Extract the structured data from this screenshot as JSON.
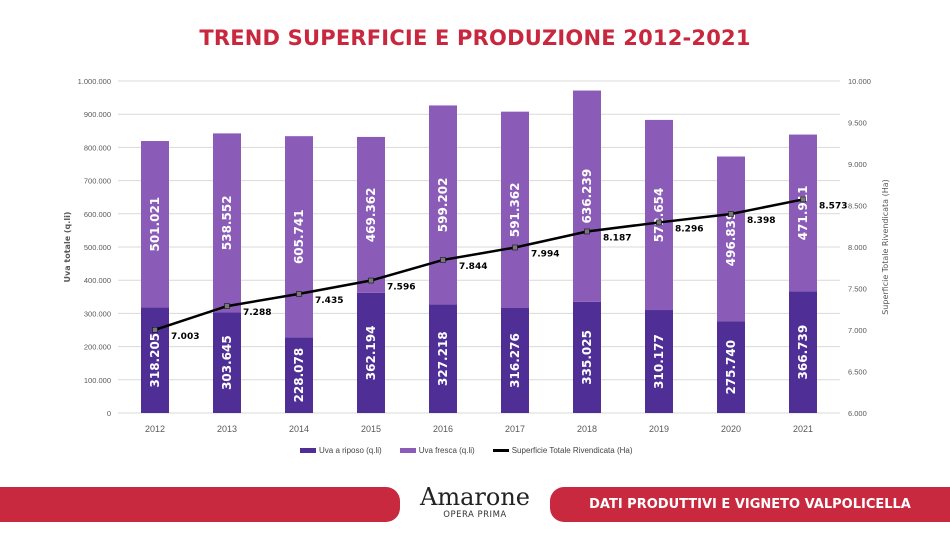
{
  "chart_data": {
    "type": "bar",
    "stacked": true,
    "title": "TREND SUPERFICIE E PRODUZIONE 2012-2021",
    "categories": [
      "2012",
      "2013",
      "2014",
      "2015",
      "2016",
      "2017",
      "2018",
      "2019",
      "2020",
      "2021"
    ],
    "ylabel": "Uva totale (q.li)",
    "ylim": [
      0,
      1000000
    ],
    "yticks": [
      "0",
      "100.000",
      "200.000",
      "300.000",
      "400.000",
      "500.000",
      "600.000",
      "700.000",
      "800.000",
      "900.000",
      "1.000.000"
    ],
    "y2label": "Superficie Totale Rivendicata (Ha)",
    "y2lim": [
      6000,
      10000
    ],
    "y2ticks": [
      "6.000",
      "6.500",
      "7.000",
      "7.500",
      "8.000",
      "8.500",
      "9.000",
      "9.500",
      "10.000"
    ],
    "grid": true,
    "legend_placement": "bottom",
    "series": [
      {
        "name": "Uva a riposo (q.li)",
        "type": "bar",
        "axis": "left",
        "color": "#4f2f96",
        "values": [
          318205,
          303645,
          228078,
          362194,
          327218,
          316276,
          335025,
          310177,
          275740,
          366739
        ],
        "labels": [
          "318.205",
          "303.645",
          "228.078",
          "362.194",
          "327.218",
          "316.276",
          "335.025",
          "310.177",
          "275.740",
          "366.739"
        ]
      },
      {
        "name": "Uva fresca (q.li)",
        "type": "bar",
        "axis": "left",
        "color": "#8a5cb8",
        "values": [
          501021,
          538552,
          605741,
          469362,
          599202,
          591362,
          636239,
          572654,
          496839,
          471911
        ],
        "labels": [
          "501.021",
          "538.552",
          "605.741",
          "469.362",
          "599.202",
          "591.362",
          "636.239",
          "572.654",
          "496.839",
          "471.911"
        ]
      },
      {
        "name": "Superficie Totale Rivendicata (Ha)",
        "type": "line",
        "axis": "right",
        "color": "#000000",
        "values": [
          7003,
          7288,
          7435,
          7596,
          7844,
          7994,
          8187,
          8296,
          8398,
          8573
        ],
        "labels": [
          "7.003",
          "7.288",
          "7.435",
          "7.596",
          "7.844",
          "7.994",
          "8.187",
          "8.296",
          "8.398",
          "8.573"
        ]
      }
    ]
  },
  "footer": {
    "brand_name": "Amarone",
    "brand_sub": "OPERA PRIMA",
    "section_label": "DATI PRODUTTIVI E VIGNETO VALPOLICELLA"
  }
}
